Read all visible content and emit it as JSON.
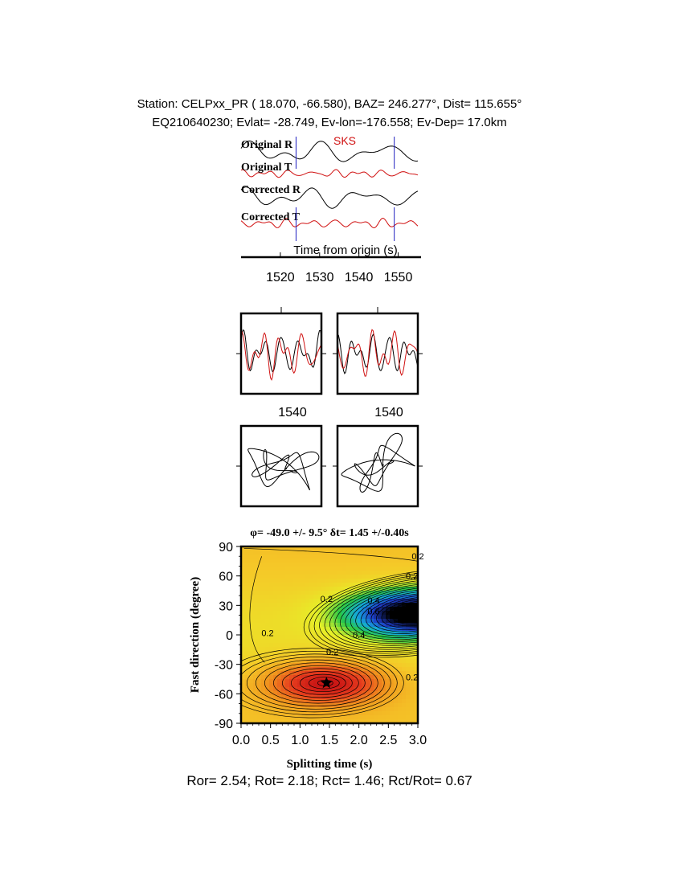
{
  "header": {
    "station_line": "Station: CELPxx_PR (  18.070,  -66.580), BAZ=  246.277°, Dist=  115.655°",
    "event_line": "EQ210640230; Evlat= -28.749, Ev-lon=-176.558; Ev-Dep= 17.0km"
  },
  "traces": {
    "phase_label": "SKS",
    "labels": [
      "Original R",
      "Original T",
      "Corrected R",
      "Corrected T"
    ],
    "xlabel": "Time from origin (s)",
    "xticks": [
      1520,
      1530,
      1540,
      1550
    ],
    "xlim": [
      1510,
      1555
    ],
    "window": [
      1524,
      1549
    ]
  },
  "particle": {
    "xticks": [
      1540,
      1540
    ]
  },
  "chart_data": {
    "type": "heatmap",
    "title": "φ= -49.0 +/- 9.5° δt= 1.45 +/-0.40s",
    "xlabel": "Splitting time (s)",
    "ylabel": "Fast direction (degree)",
    "xlim": [
      0.0,
      3.0
    ],
    "ylim": [
      -90,
      90
    ],
    "xticks": [
      "0.0",
      "0.5",
      "1.0",
      "1.5",
      "2.0",
      "2.5",
      "3.0"
    ],
    "yticks": [
      "90",
      "60",
      "30",
      "0",
      "-30",
      "-60",
      "-90"
    ],
    "best_fit": {
      "dt": 1.45,
      "phi": -49.0
    },
    "contour_labels": [
      "0.2",
      "0.2",
      "0.2",
      "0.2",
      "0.4",
      "0.4",
      "0.6",
      "0.2",
      "0.2"
    ],
    "colors": {
      "low": "#e02010",
      "mid": "#f0a020",
      "high_green": "#20c040",
      "high_blue": "#2080f0",
      "max": "#000000"
    }
  },
  "summary": "Ror= 2.54; Rot= 2.18; Rct= 1.46; Rct/Rot= 0.67"
}
